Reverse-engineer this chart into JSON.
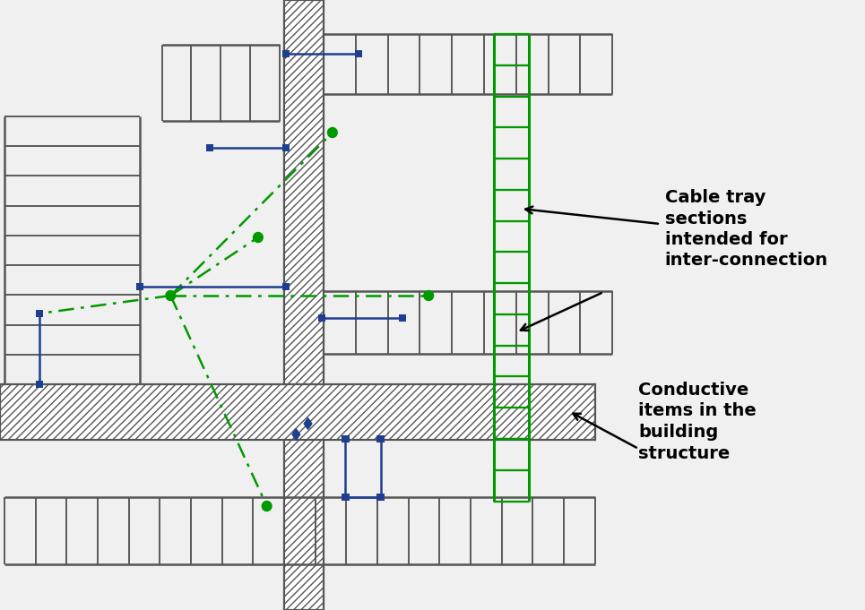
{
  "bg_color": "#f0f0f0",
  "gray": "#555555",
  "blue": "#1e3f8f",
  "green": "#009900",
  "black": "#000000",
  "white": "#ffffff",
  "font_size": 14,
  "label1": "Cable tray\nsections\nintended for\ninter-connection",
  "label2": "Conductive\nitems in the\nbuilding\nstructure"
}
